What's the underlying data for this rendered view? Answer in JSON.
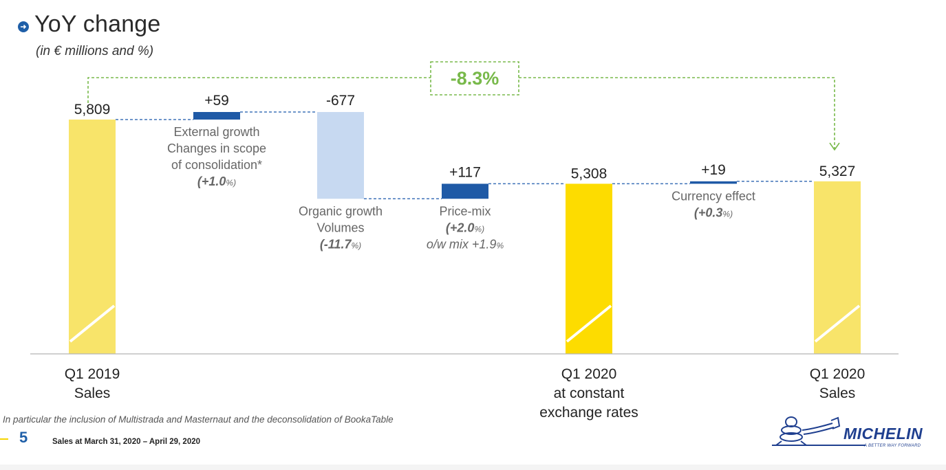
{
  "slide": {
    "title": "YoY change",
    "subtitle": "(in € millions and %)",
    "footnote": "In particular the inclusion of Multistrada and Masternaut and the deconsolidation of BookaTable",
    "page_number": "5",
    "footer_text": "Sales at March 31, 2020 – April 29, 2020",
    "logo_text": "MICHELIN",
    "logo_tagline": "A BETTER WAY FORWARD"
  },
  "colors": {
    "total_bar": "#f8e46a",
    "constant_bar": "#fddc00",
    "positive_delta": "#1f5aa6",
    "negative_delta": "#c7d9f1",
    "connector": "#3f72b8",
    "bracket": "#78b94a",
    "bullet": "#1f5fa8"
  },
  "chart_data": {
    "type": "bar",
    "variant": "waterfall",
    "ylim": [
      4500,
      5900
    ],
    "bars": [
      {
        "kind": "total",
        "category": "Q1 2019 Sales",
        "value_label": "5,809",
        "start": 0,
        "end": 5809,
        "labels": [],
        "axis_label": [
          "Q1 2019",
          "Sales"
        ]
      },
      {
        "kind": "delta",
        "category": "External growth",
        "value_label": "+59",
        "start": 5809,
        "end": 5868,
        "labels": [
          {
            "text": "External growth",
            "style": "normal"
          },
          {
            "text": "Changes in scope",
            "style": "normal"
          },
          {
            "text": "of consolidation*",
            "style": "normal"
          },
          {
            "text": "(+1.0",
            "suffix": "%)",
            "style": "bold-italic"
          }
        ],
        "axis_label": []
      },
      {
        "kind": "delta",
        "category": "Organic growth Volumes",
        "value_label": "-677",
        "start": 5868,
        "end": 5191,
        "labels": [
          {
            "text": "Organic growth",
            "style": "normal"
          },
          {
            "text": "Volumes",
            "style": "normal"
          },
          {
            "text": "(-11.7",
            "suffix": "%)",
            "style": "bold-italic"
          }
        ],
        "axis_label": []
      },
      {
        "kind": "delta",
        "category": "Price-mix",
        "value_label": "+117",
        "start": 5191,
        "end": 5308,
        "labels": [
          {
            "text": "Price-mix",
            "style": "normal"
          },
          {
            "text": "(+2.0",
            "suffix": "%)",
            "style": "bold-italic"
          },
          {
            "text": "o/w mix +1.9",
            "suffix": "%",
            "style": "italic"
          }
        ],
        "axis_label": []
      },
      {
        "kind": "total",
        "category": "Q1 2020 at constant exchange rates",
        "value_label": "5,308",
        "start": 0,
        "end": 5308,
        "labels": [],
        "axis_label": [
          "Q1 2020",
          "at constant",
          "exchange rates"
        ]
      },
      {
        "kind": "delta",
        "category": "Currency effect",
        "value_label": "+19",
        "start": 5308,
        "end": 5327,
        "labels": [
          {
            "text": "Currency effect",
            "style": "normal"
          },
          {
            "text": "(+0.3",
            "suffix": "%)",
            "style": "bold-italic"
          }
        ],
        "axis_label": []
      },
      {
        "kind": "total",
        "category": "Q1 2020 Sales",
        "value_label": "5,327",
        "start": 0,
        "end": 5327,
        "labels": [],
        "axis_label": [
          "Q1 2020",
          "Sales"
        ]
      }
    ],
    "bracket": {
      "label": "-8.3%",
      "from_bar": 0,
      "to_bar": 6
    },
    "axis_break": true,
    "legend": "none",
    "grid": false
  }
}
